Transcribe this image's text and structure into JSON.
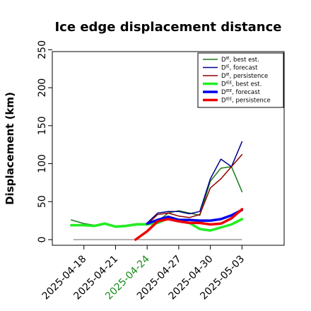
{
  "chart_data": {
    "type": "line",
    "title": "Ice edge displacement distance",
    "xlabel": "",
    "ylabel": "Displacement (km)",
    "ylim": [
      0,
      255
    ],
    "xlim": [
      0,
      22
    ],
    "grid": false,
    "legend_position": "top-right",
    "y_ticks": [
      0,
      50,
      100,
      150,
      200,
      250
    ],
    "x_ticks": [
      {
        "x": 3,
        "label": "2025-04-18",
        "color": "#000000"
      },
      {
        "x": 6,
        "label": "2025-04-21",
        "color": "#000000"
      },
      {
        "x": 9,
        "label": "2025-04-24",
        "color": "#1a8a1a"
      },
      {
        "x": 12,
        "label": "2025-04-27",
        "color": "#000000"
      },
      {
        "x": 15,
        "label": "2025-04-30",
        "color": "#000000"
      },
      {
        "x": 18,
        "label": "2025-05-03",
        "color": "#000000"
      }
    ],
    "reference_line": {
      "y": 0,
      "x_start": 2,
      "x_end": 18,
      "color": "#888888"
    },
    "series": [
      {
        "name": "Dᴵᴱ, best est.",
        "sup": "IE",
        "legend_text": ", best est.",
        "color": "#1a7a1a",
        "width": 1.5,
        "x": [
          1.8,
          3,
          4,
          5,
          6,
          7,
          8,
          9,
          10,
          11,
          12,
          13,
          14,
          15,
          16,
          17,
          18
        ],
        "y": [
          26,
          21,
          19,
          22,
          18,
          19,
          21,
          21,
          24,
          35,
          38,
          35,
          32,
          77,
          94,
          96,
          63
        ]
      },
      {
        "name": "Dᴵᴱ, forecast",
        "sup": "IE",
        "legend_text": ", forecast",
        "color": "#00008b",
        "width": 1.5,
        "x": [
          9,
          10,
          11,
          12,
          13,
          14,
          15,
          16,
          17,
          18
        ],
        "y": [
          22,
          35,
          37,
          37,
          34,
          37,
          80,
          106,
          96,
          129
        ]
      },
      {
        "name": "Dᴵᴱ, persistence",
        "sup": "IE",
        "legend_text": ", persistence",
        "color": "#8b0000",
        "width": 1.5,
        "x": [
          9,
          10,
          11,
          12,
          13,
          14,
          15,
          16,
          17,
          18
        ],
        "y": [
          20,
          33,
          35,
          31,
          29,
          33,
          68,
          80,
          96,
          112
        ]
      },
      {
        "name": "Dᴵᴱᴱ, best est.",
        "sup": "IEE",
        "legend_text": ", best est.",
        "color": "#22ee22",
        "width": 3.5,
        "x": [
          1.8,
          3,
          4,
          5,
          6,
          7,
          8,
          9,
          10,
          11,
          12,
          13,
          14,
          15,
          16,
          17,
          18
        ],
        "y": [
          19,
          19,
          18,
          21,
          17,
          18,
          20,
          20,
          22,
          28,
          25,
          22,
          14,
          12,
          16,
          20,
          27
        ]
      },
      {
        "name": "Dᴵᴱᴱ, forecast",
        "sup": "IEE",
        "legend_text": ", forecast",
        "color": "#0000ee",
        "width": 3.5,
        "x": [
          9,
          10,
          11,
          12,
          13,
          14,
          15,
          16,
          17,
          18
        ],
        "y": [
          21,
          26,
          30,
          26,
          26,
          25,
          25,
          27,
          32,
          39
        ]
      },
      {
        "name": "Dᴵᴱᴱ, persistence",
        "sup": "IEE",
        "legend_text": ", persistence",
        "color": "#ee0000",
        "width": 3.5,
        "x": [
          7.9,
          9,
          10,
          11,
          12,
          13,
          14,
          15,
          16,
          17,
          18
        ],
        "y": [
          0,
          11,
          24,
          27,
          24,
          22,
          22,
          20,
          21,
          28,
          40
        ]
      }
    ]
  }
}
